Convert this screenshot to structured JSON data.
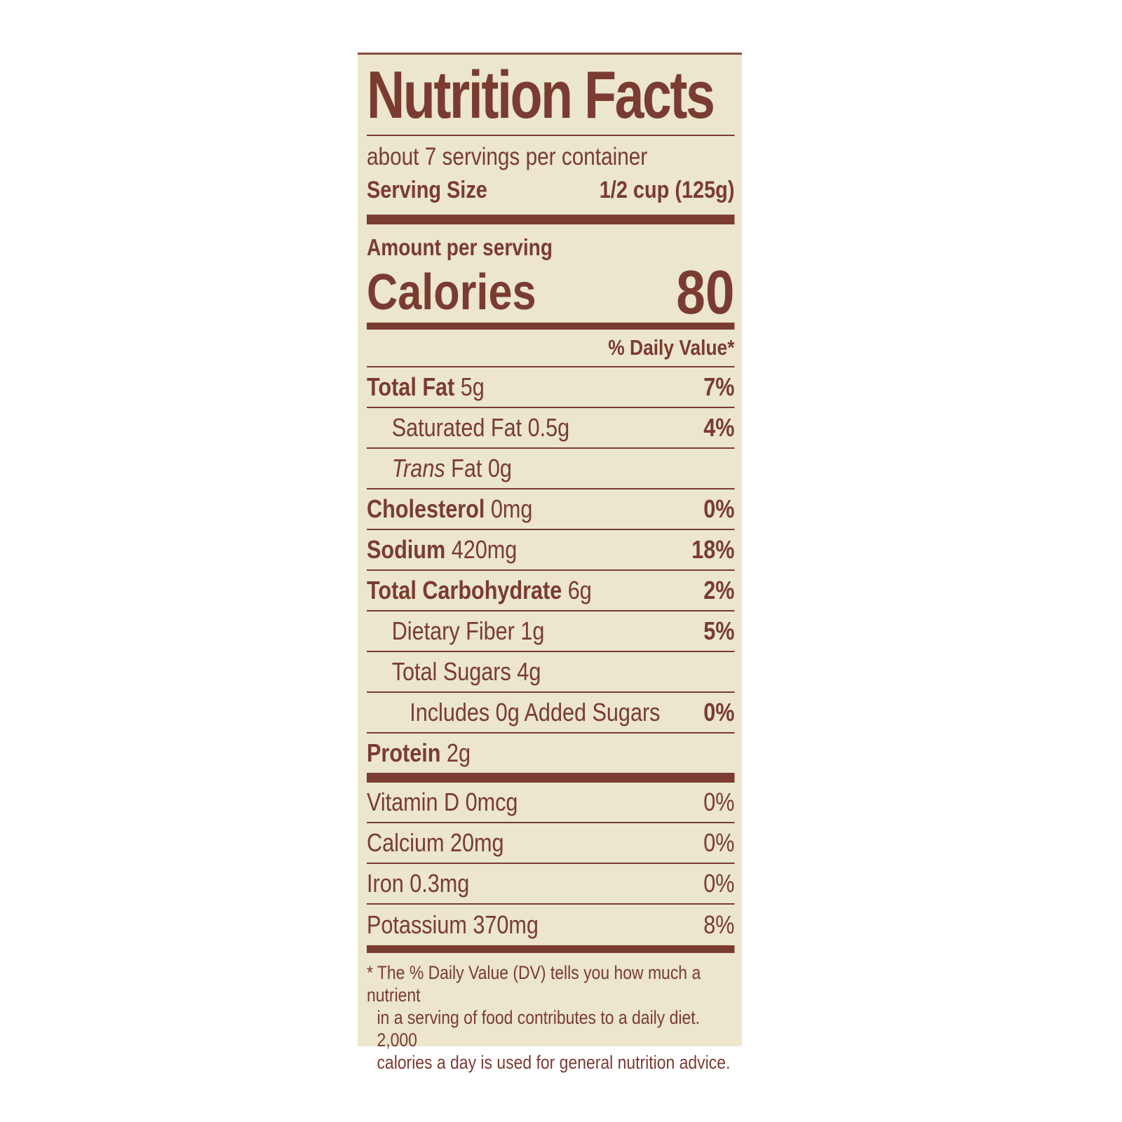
{
  "label": {
    "title": "Nutrition Facts",
    "servings_per_container": "about 7 servings per container",
    "serving_size_label": "Serving Size",
    "serving_size_value": "1/2 cup (125g)",
    "amount_per_serving": "Amount per serving",
    "calories_label": "Calories",
    "calories_value": "80",
    "daily_value_header": "% Daily Value*",
    "nutrients": [
      {
        "name": "Total Fat",
        "amount": "5g",
        "dv": "7%"
      },
      {
        "name": "Saturated Fat 0.5g",
        "amount": "",
        "dv": "4%"
      },
      {
        "name": "Trans",
        "amount": "Fat 0g",
        "dv": ""
      },
      {
        "name": "Cholesterol",
        "amount": "0mg",
        "dv": "0%"
      },
      {
        "name": "Sodium",
        "amount": "420mg",
        "dv": "18%"
      },
      {
        "name": "Total Carbohydrate",
        "amount": "6g",
        "dv": "2%"
      },
      {
        "name": "Dietary Fiber 1g",
        "amount": "",
        "dv": "5%"
      },
      {
        "name": "Total Sugars 4g",
        "amount": "",
        "dv": ""
      },
      {
        "name": "Includes 0g Added Sugars",
        "amount": "",
        "dv": "0%"
      },
      {
        "name": "Protein",
        "amount": "2g",
        "dv": ""
      }
    ],
    "vitamins": [
      {
        "name": "Vitamin D 0mcg",
        "dv": "0%"
      },
      {
        "name": "Calcium 20mg",
        "dv": "0%"
      },
      {
        "name": "Iron 0.3mg",
        "dv": "0%"
      },
      {
        "name": "Potassium 370mg",
        "dv": "8%"
      }
    ],
    "footnote": [
      "* The % Daily Value (DV) tells you how much a nutrient",
      "in a serving of food contributes to a daily diet. 2,000",
      "calories a day is used for general nutrition advice."
    ]
  },
  "colors": {
    "background": "#ebe6cc",
    "ink": "#7a3b32"
  }
}
